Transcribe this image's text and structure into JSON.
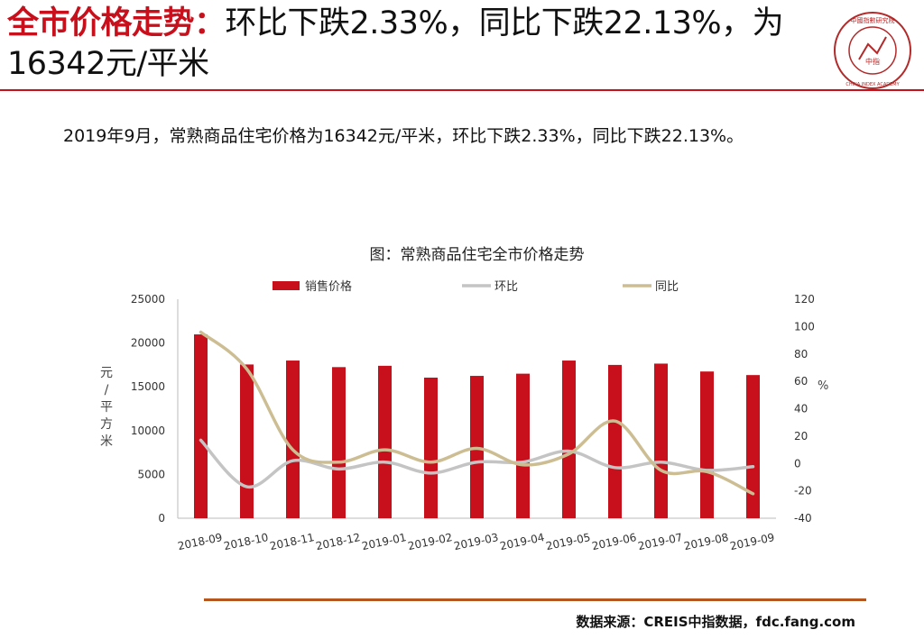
{
  "header": {
    "title_accent": "全市价格走势：",
    "title_rest": "环比下跌2.33%，同比下跌22.13%，为16342元/平米",
    "accent_color": "#c8101c"
  },
  "logo": {
    "text": "中國指數研究院",
    "center_text": "中指",
    "english": "CHINA INDEX ACADEMY"
  },
  "summary": "2019年9月，常熟商品住宅价格为16342元/平米，环比下跌2.33%，同比下跌22.13%。",
  "chart_data": {
    "type": "bar",
    "title": "图：常熟商品住宅全市价格走势",
    "categories": [
      "2018-09",
      "2018-10",
      "2018-11",
      "2018-12",
      "2019-01",
      "2019-02",
      "2019-03",
      "2019-04",
      "2019-05",
      "2019-06",
      "2019-07",
      "2019-08",
      "2019-09"
    ],
    "series": [
      {
        "name": "销售价格",
        "type": "bar",
        "axis": "left",
        "color": "#c8101c",
        "values": [
          20985,
          17550,
          18000,
          17250,
          17400,
          16050,
          16250,
          16500,
          18000,
          17500,
          17650,
          16750,
          16342
        ]
      },
      {
        "name": "环比",
        "type": "line",
        "axis": "right",
        "color": "#c4c4c4",
        "values": [
          17,
          -17,
          2,
          -4,
          1,
          -7,
          1,
          1,
          9,
          -3,
          1,
          -5,
          -2.33
        ]
      },
      {
        "name": "同比",
        "type": "line",
        "axis": "right",
        "color": "#cdbd93",
        "values": [
          96,
          69,
          10,
          1,
          10,
          1,
          11,
          -1,
          7,
          31,
          -5,
          -6,
          -22.13
        ]
      }
    ],
    "y_left": {
      "label": "元/平方米",
      "min": 0,
      "max": 25000,
      "ticks": [
        0,
        5000,
        10000,
        15000,
        20000,
        25000
      ]
    },
    "y_right": {
      "label": "%",
      "min": -40,
      "max": 120,
      "ticks": [
        -40,
        -20,
        0,
        20,
        40,
        60,
        80,
        100,
        120
      ]
    },
    "legend_position": "top",
    "grid": false
  },
  "footer": {
    "source": "数据来源：CREIS中指数据，fdc.fang.com"
  }
}
